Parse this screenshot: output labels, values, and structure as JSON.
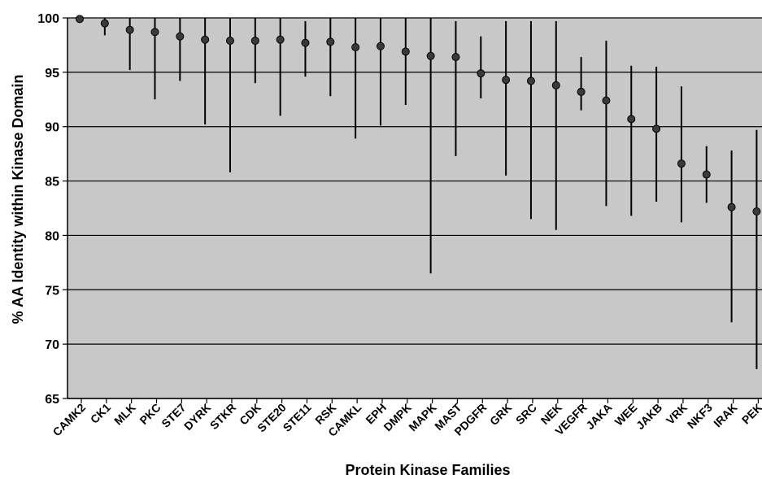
{
  "chart_data": {
    "type": "scatter",
    "title": "",
    "xlabel": "Protein Kinase Families",
    "ylabel": "% AA Identity within Kinase Domain",
    "ylim": [
      65,
      100
    ],
    "yticks": [
      65,
      70,
      75,
      80,
      85,
      90,
      95,
      100
    ],
    "grid": true,
    "legend": "none",
    "colors": {
      "plot_bg": "#c8c8c8",
      "marker": "#3a3a3a",
      "line": "#000000"
    },
    "categories": [
      "CAMK2",
      "CK1",
      "MLK",
      "PKC",
      "STE7",
      "DYRK",
      "STKR",
      "CDK",
      "STE20",
      "STE11",
      "RSK",
      "CAMKL",
      "EPH",
      "DMPK",
      "MAPK",
      "MAST",
      "PDGFR",
      "GRK",
      "SRC",
      "NEK",
      "VEGFR",
      "JAKA",
      "WEE",
      "JAKB",
      "VRK",
      "NKF3",
      "IRAK",
      "PEK"
    ],
    "series": [
      {
        "mean": [
          99.9,
          99.5,
          98.9,
          98.7,
          98.3,
          98.0,
          97.9,
          97.9,
          98.0,
          97.7,
          97.8,
          97.3,
          97.4,
          96.9,
          96.5,
          96.4,
          94.9,
          94.3,
          94.2,
          93.8,
          93.2,
          92.4,
          90.7,
          89.8,
          86.6,
          85.6,
          82.6,
          82.2
        ],
        "upper": [
          100,
          100,
          100,
          100,
          100,
          100,
          100,
          100,
          100,
          99.7,
          100,
          100,
          100,
          100,
          100,
          99.7,
          98.3,
          99.7,
          99.7,
          99.7,
          96.4,
          97.9,
          95.6,
          95.5,
          93.7,
          88.2,
          87.8,
          89.7
        ],
        "lower": [
          99.8,
          98.4,
          95.2,
          92.5,
          94.2,
          90.2,
          85.8,
          94.0,
          91.0,
          94.6,
          92.8,
          88.9,
          90.1,
          92.0,
          76.5,
          87.3,
          92.6,
          85.5,
          81.5,
          80.5,
          91.5,
          82.7,
          81.8,
          83.1,
          81.2,
          83.0,
          72.0,
          67.7
        ]
      }
    ]
  }
}
